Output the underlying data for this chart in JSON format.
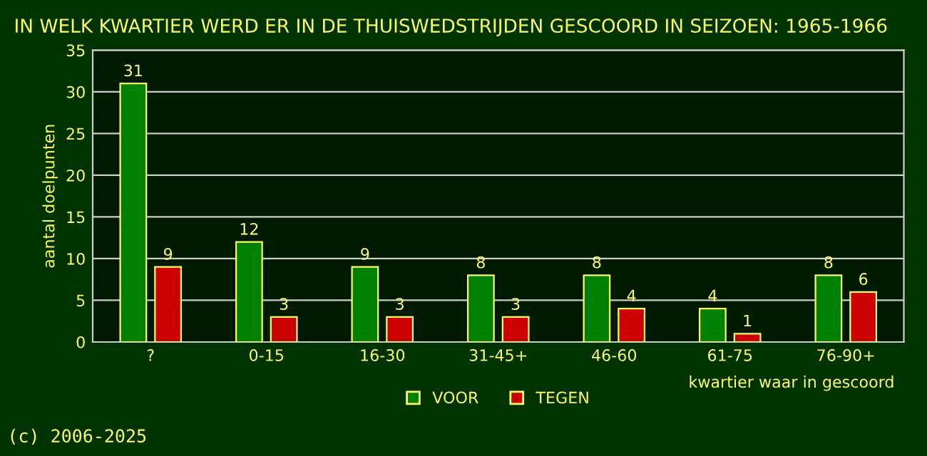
{
  "chart_data": {
    "type": "bar",
    "title": "IN WELK KWARTIER WERD ER IN DE THUISWEDSTRIJDEN GESCOORD IN SEIZOEN: 1965-1966",
    "xlabel": "kwartier waar in gescoord",
    "ylabel": "aantal doelpunten",
    "categories": [
      "?",
      "0-15",
      "16-30",
      "31-45+",
      "46-60",
      "61-75",
      "76-90+"
    ],
    "series": [
      {
        "name": "VOOR",
        "color": "#008000",
        "values": [
          31,
          12,
          9,
          8,
          8,
          4,
          8
        ]
      },
      {
        "name": "TEGEN",
        "color": "#cc0000",
        "values": [
          9,
          3,
          3,
          3,
          4,
          1,
          6
        ]
      }
    ],
    "ylim": [
      0,
      35
    ],
    "yticks": [
      0,
      5,
      10,
      15,
      20,
      25,
      30,
      35
    ],
    "grid": "y",
    "legend": "bottom",
    "data_labels": true,
    "annotations": [
      "(c) 2006-2025"
    ]
  }
}
